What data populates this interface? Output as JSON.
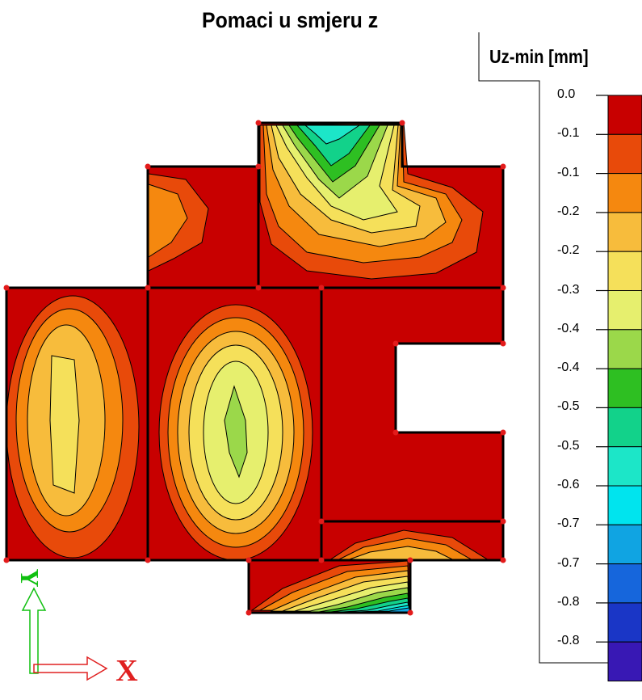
{
  "chart_data": {
    "type": "heatmap",
    "title": "Pomaci u smjeru z",
    "legend": {
      "title": "Uz-min [mm]",
      "placement": "right",
      "ticks": [
        "0.0",
        "-0.1",
        "-0.1",
        "-0.2",
        "-0.2",
        "-0.3",
        "-0.4",
        "-0.4",
        "-0.5",
        "-0.5",
        "-0.6",
        "-0.7",
        "-0.7",
        "-0.8",
        "-0.8"
      ],
      "colors": [
        "#c80000",
        "#e84a0a",
        "#f5880f",
        "#f7bc3c",
        "#f5e05a",
        "#e6ef6e",
        "#9bd84a",
        "#2ebf22",
        "#12d28a",
        "#1ce6c8",
        "#00e4ee",
        "#10a4e2",
        "#1666dc",
        "#1a36c6",
        "#3818b4"
      ]
    },
    "axes": {
      "x_label": "X",
      "y_label": "Y"
    },
    "colors": {
      "background": "#c80000",
      "edge": "#000000",
      "node": "#e31b1b",
      "x_arrow": "#e02020",
      "y_arrow": "#10c010"
    }
  }
}
